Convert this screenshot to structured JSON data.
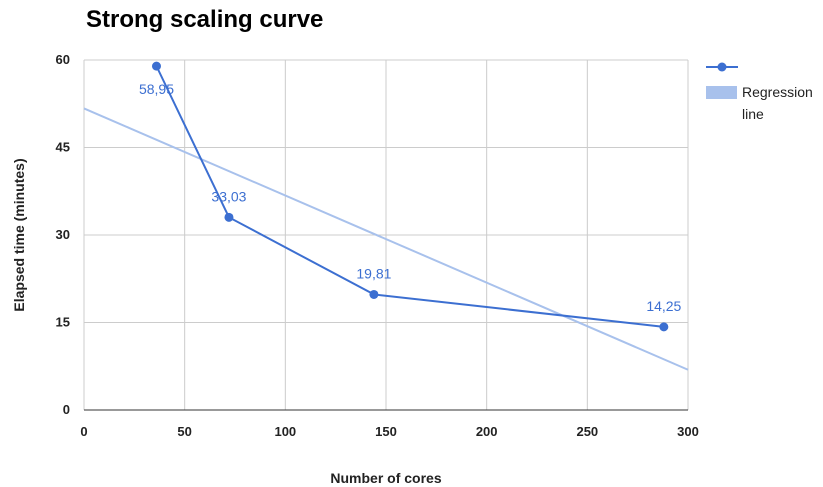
{
  "chart_data": {
    "type": "line",
    "title": "Strong scaling curve",
    "xlabel": "Number of cores",
    "ylabel": "Elapsed time (minutes)",
    "xlim": [
      0,
      300
    ],
    "ylim": [
      0,
      60
    ],
    "x_ticks": [
      "0",
      "50",
      "100",
      "150",
      "200",
      "250",
      "300"
    ],
    "y_ticks": [
      "0",
      "15",
      "30",
      "45",
      "60"
    ],
    "grid": true,
    "legend_position": "right",
    "series": [
      {
        "name": "",
        "color": "#3c6fd1",
        "x": [
          36,
          72,
          144,
          288
        ],
        "y": [
          58.95,
          33.03,
          19.81,
          14.25
        ],
        "data_labels": [
          "58,95",
          "33,03",
          "19,81",
          "14,25"
        ]
      },
      {
        "name": "Regression line",
        "legend_lines": [
          "Regression",
          "line"
        ],
        "color": "#a8c1ec",
        "x": [
          0,
          300
        ],
        "y": [
          51.7,
          6.9
        ]
      }
    ]
  }
}
